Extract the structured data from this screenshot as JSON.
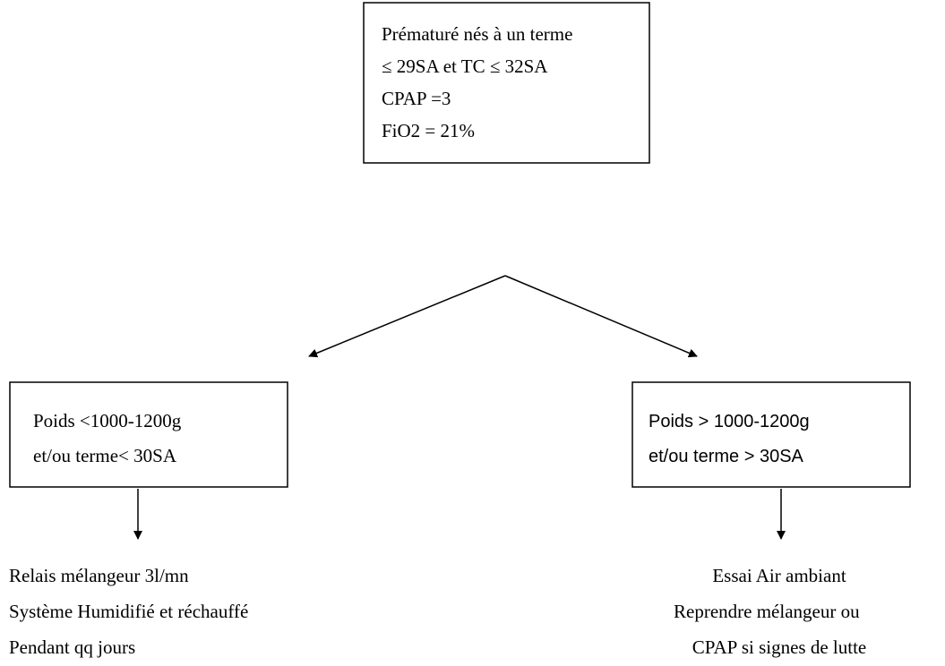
{
  "top": {
    "lines": [
      "Prématuré nés à un terme",
      "≤ 29SA et TC ≤ 32SA",
      "CPAP =3",
      "FiO2 = 21%"
    ]
  },
  "left": {
    "box": [
      "Poids <1000-1200g",
      "et/ou terme< 30SA"
    ],
    "result": [
      "Relais mélangeur 3l/mn",
      "Système Humidifié et réchauffé",
      "Pendant qq jours"
    ]
  },
  "right": {
    "box": [
      "Poids > 1000-1200g",
      "et/ou terme > 30SA"
    ],
    "result": [
      "Essai Air ambiant",
      "Reprendre mélangeur ou",
      "CPAP si signes de lutte"
    ]
  }
}
